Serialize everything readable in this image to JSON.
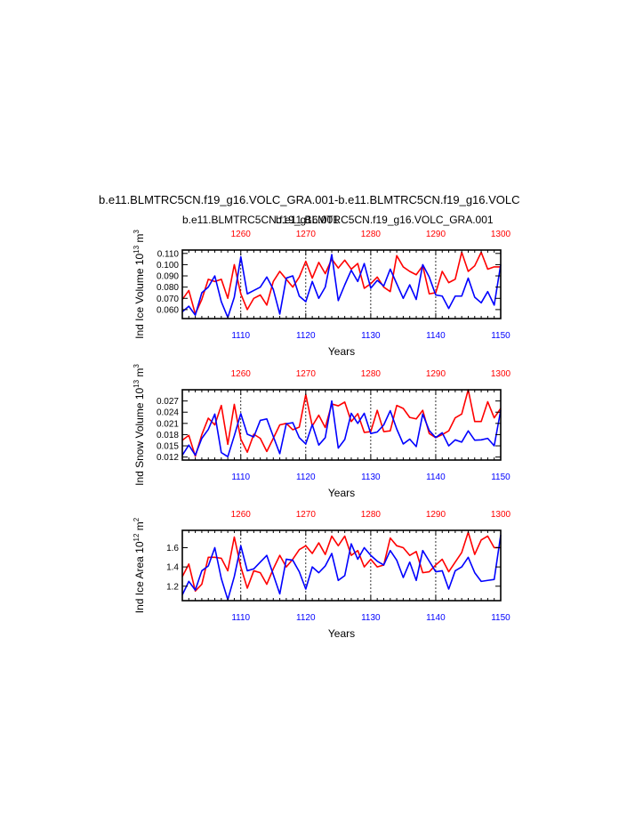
{
  "header": {
    "title": "b.e11.BLMTRC5CN.f19_g16.VOLC_GRA.001-b.e11.BLMTRC5CN.f19_g16.VOLC",
    "subtitle_red": "b.e11.BLMTRC5CN.f19_g16.001",
    "subtitle_blue": "b.e11.BLMTRC5CN.f19_g16.VOLC_GRA.001"
  },
  "colors": {
    "red": "#ff0000",
    "blue": "#0000ff"
  },
  "chart_data": [
    {
      "type": "line",
      "ylabel": "Ind Ice Volume 10",
      "ylabel_exp": "13",
      "ylabel_unit": " m",
      "ylabel_unit_exp": "3",
      "xlabel": "Years",
      "xlim": [
        1101,
        1150
      ],
      "top_xlim": [
        1251,
        1300
      ],
      "ylim": [
        0.052,
        0.113
      ],
      "y_ticks": [
        "0.060",
        "0.070",
        "0.080",
        "0.090",
        "0.100",
        "0.110"
      ],
      "bottom_ticks": [
        "1110",
        "1120",
        "1130",
        "1140",
        "1150"
      ],
      "top_ticks": [
        "1260",
        "1270",
        "1280",
        "1290",
        "1300"
      ],
      "series": [
        {
          "color": "red",
          "values": [
            0.069,
            0.077,
            0.056,
            0.069,
            0.087,
            0.085,
            0.087,
            0.07,
            0.1,
            0.074,
            0.06,
            0.07,
            0.073,
            0.064,
            0.085,
            0.094,
            0.087,
            0.08,
            0.089,
            0.103,
            0.088,
            0.102,
            0.092,
            0.105,
            0.097,
            0.104,
            0.096,
            0.101,
            0.079,
            0.083,
            0.089,
            0.08,
            0.076,
            0.108,
            0.098,
            0.094,
            0.091,
            0.099,
            0.074,
            0.075,
            0.094,
            0.084,
            0.087,
            0.111,
            0.094,
            0.099,
            0.111,
            0.096,
            0.098,
            0.098
          ]
        },
        {
          "color": "blue",
          "values": [
            0.058,
            0.063,
            0.055,
            0.075,
            0.08,
            0.09,
            0.067,
            0.053,
            0.071,
            0.107,
            0.074,
            0.077,
            0.08,
            0.089,
            0.078,
            0.056,
            0.088,
            0.09,
            0.072,
            0.067,
            0.085,
            0.07,
            0.08,
            0.109,
            0.068,
            0.082,
            0.095,
            0.085,
            0.101,
            0.079,
            0.086,
            0.081,
            0.096,
            0.083,
            0.07,
            0.082,
            0.069,
            0.1,
            0.089,
            0.073,
            0.072,
            0.061,
            0.072,
            0.072,
            0.088,
            0.071,
            0.066,
            0.076,
            0.064,
            0.1
          ]
        }
      ]
    },
    {
      "type": "line",
      "ylabel": "Ind Snow Volume 10",
      "ylabel_exp": "13",
      "ylabel_unit": " m",
      "ylabel_unit_exp": "3",
      "xlabel": "Years",
      "xlim": [
        1101,
        1150
      ],
      "top_xlim": [
        1251,
        1300
      ],
      "ylim": [
        0.0112,
        0.03
      ],
      "y_ticks": [
        "0.012",
        "0.015",
        "0.018",
        "0.021",
        "0.024",
        "0.027"
      ],
      "bottom_ticks": [
        "1110",
        "1120",
        "1130",
        "1140",
        "1150"
      ],
      "top_ticks": [
        "1260",
        "1270",
        "1280",
        "1290",
        "1300"
      ],
      "series": [
        {
          "color": "red",
          "values": [
            0.0165,
            0.0178,
            0.0122,
            0.018,
            0.0224,
            0.0206,
            0.0258,
            0.0154,
            0.0261,
            0.0168,
            0.0133,
            0.0181,
            0.017,
            0.0135,
            0.017,
            0.0206,
            0.021,
            0.0193,
            0.02,
            0.0287,
            0.0203,
            0.0232,
            0.0199,
            0.0262,
            0.0257,
            0.0267,
            0.0215,
            0.0236,
            0.0186,
            0.0188,
            0.0245,
            0.0188,
            0.019,
            0.0258,
            0.025,
            0.0226,
            0.0222,
            0.0245,
            0.0183,
            0.0172,
            0.018,
            0.019,
            0.0225,
            0.0235,
            0.03,
            0.0215,
            0.0215,
            0.0268,
            0.0225,
            0.025
          ]
        },
        {
          "color": "blue",
          "values": [
            0.0125,
            0.0152,
            0.0125,
            0.017,
            0.0194,
            0.0235,
            0.0132,
            0.0121,
            0.0177,
            0.0236,
            0.0181,
            0.0174,
            0.0218,
            0.0222,
            0.0175,
            0.0129,
            0.0209,
            0.0212,
            0.0172,
            0.0155,
            0.0207,
            0.0152,
            0.0172,
            0.027,
            0.0144,
            0.0167,
            0.0237,
            0.021,
            0.0237,
            0.0183,
            0.0187,
            0.0206,
            0.0244,
            0.0195,
            0.0155,
            0.0168,
            0.0148,
            0.0235,
            0.0191,
            0.0172,
            0.0185,
            0.015,
            0.0166,
            0.016,
            0.019,
            0.0165,
            0.0166,
            0.017,
            0.015,
            0.0245
          ]
        }
      ]
    },
    {
      "type": "line",
      "ylabel": "Ind Ice Area 10",
      "ylabel_exp": "12",
      "ylabel_unit": " m",
      "ylabel_unit_exp": "2",
      "xlabel": "Years",
      "xlim": [
        1101,
        1150
      ],
      "top_xlim": [
        1251,
        1300
      ],
      "ylim": [
        1.05,
        1.78
      ],
      "y_ticks": [
        "1.2",
        "1.4",
        "1.6"
      ],
      "bottom_ticks": [
        "1110",
        "1120",
        "1130",
        "1140",
        "1150"
      ],
      "top_ticks": [
        "1260",
        "1270",
        "1280",
        "1290",
        "1300"
      ],
      "series": [
        {
          "color": "red",
          "values": [
            1.3,
            1.43,
            1.15,
            1.22,
            1.5,
            1.5,
            1.49,
            1.36,
            1.71,
            1.4,
            1.18,
            1.36,
            1.34,
            1.22,
            1.38,
            1.52,
            1.4,
            1.48,
            1.58,
            1.62,
            1.54,
            1.65,
            1.53,
            1.72,
            1.62,
            1.72,
            1.52,
            1.57,
            1.4,
            1.48,
            1.4,
            1.42,
            1.7,
            1.62,
            1.6,
            1.52,
            1.56,
            1.34,
            1.35,
            1.42,
            1.48,
            1.35,
            1.45,
            1.55,
            1.76,
            1.53,
            1.68,
            1.72,
            1.6,
            1.6
          ]
        },
        {
          "color": "blue",
          "values": [
            1.11,
            1.25,
            1.16,
            1.36,
            1.41,
            1.6,
            1.28,
            1.06,
            1.3,
            1.62,
            1.36,
            1.38,
            1.45,
            1.52,
            1.32,
            1.12,
            1.48,
            1.47,
            1.35,
            1.17,
            1.4,
            1.34,
            1.41,
            1.54,
            1.26,
            1.31,
            1.64,
            1.48,
            1.6,
            1.52,
            1.46,
            1.42,
            1.57,
            1.47,
            1.29,
            1.45,
            1.26,
            1.57,
            1.46,
            1.35,
            1.36,
            1.17,
            1.36,
            1.4,
            1.5,
            1.34,
            1.25,
            1.26,
            1.27,
            1.73
          ]
        }
      ]
    }
  ]
}
